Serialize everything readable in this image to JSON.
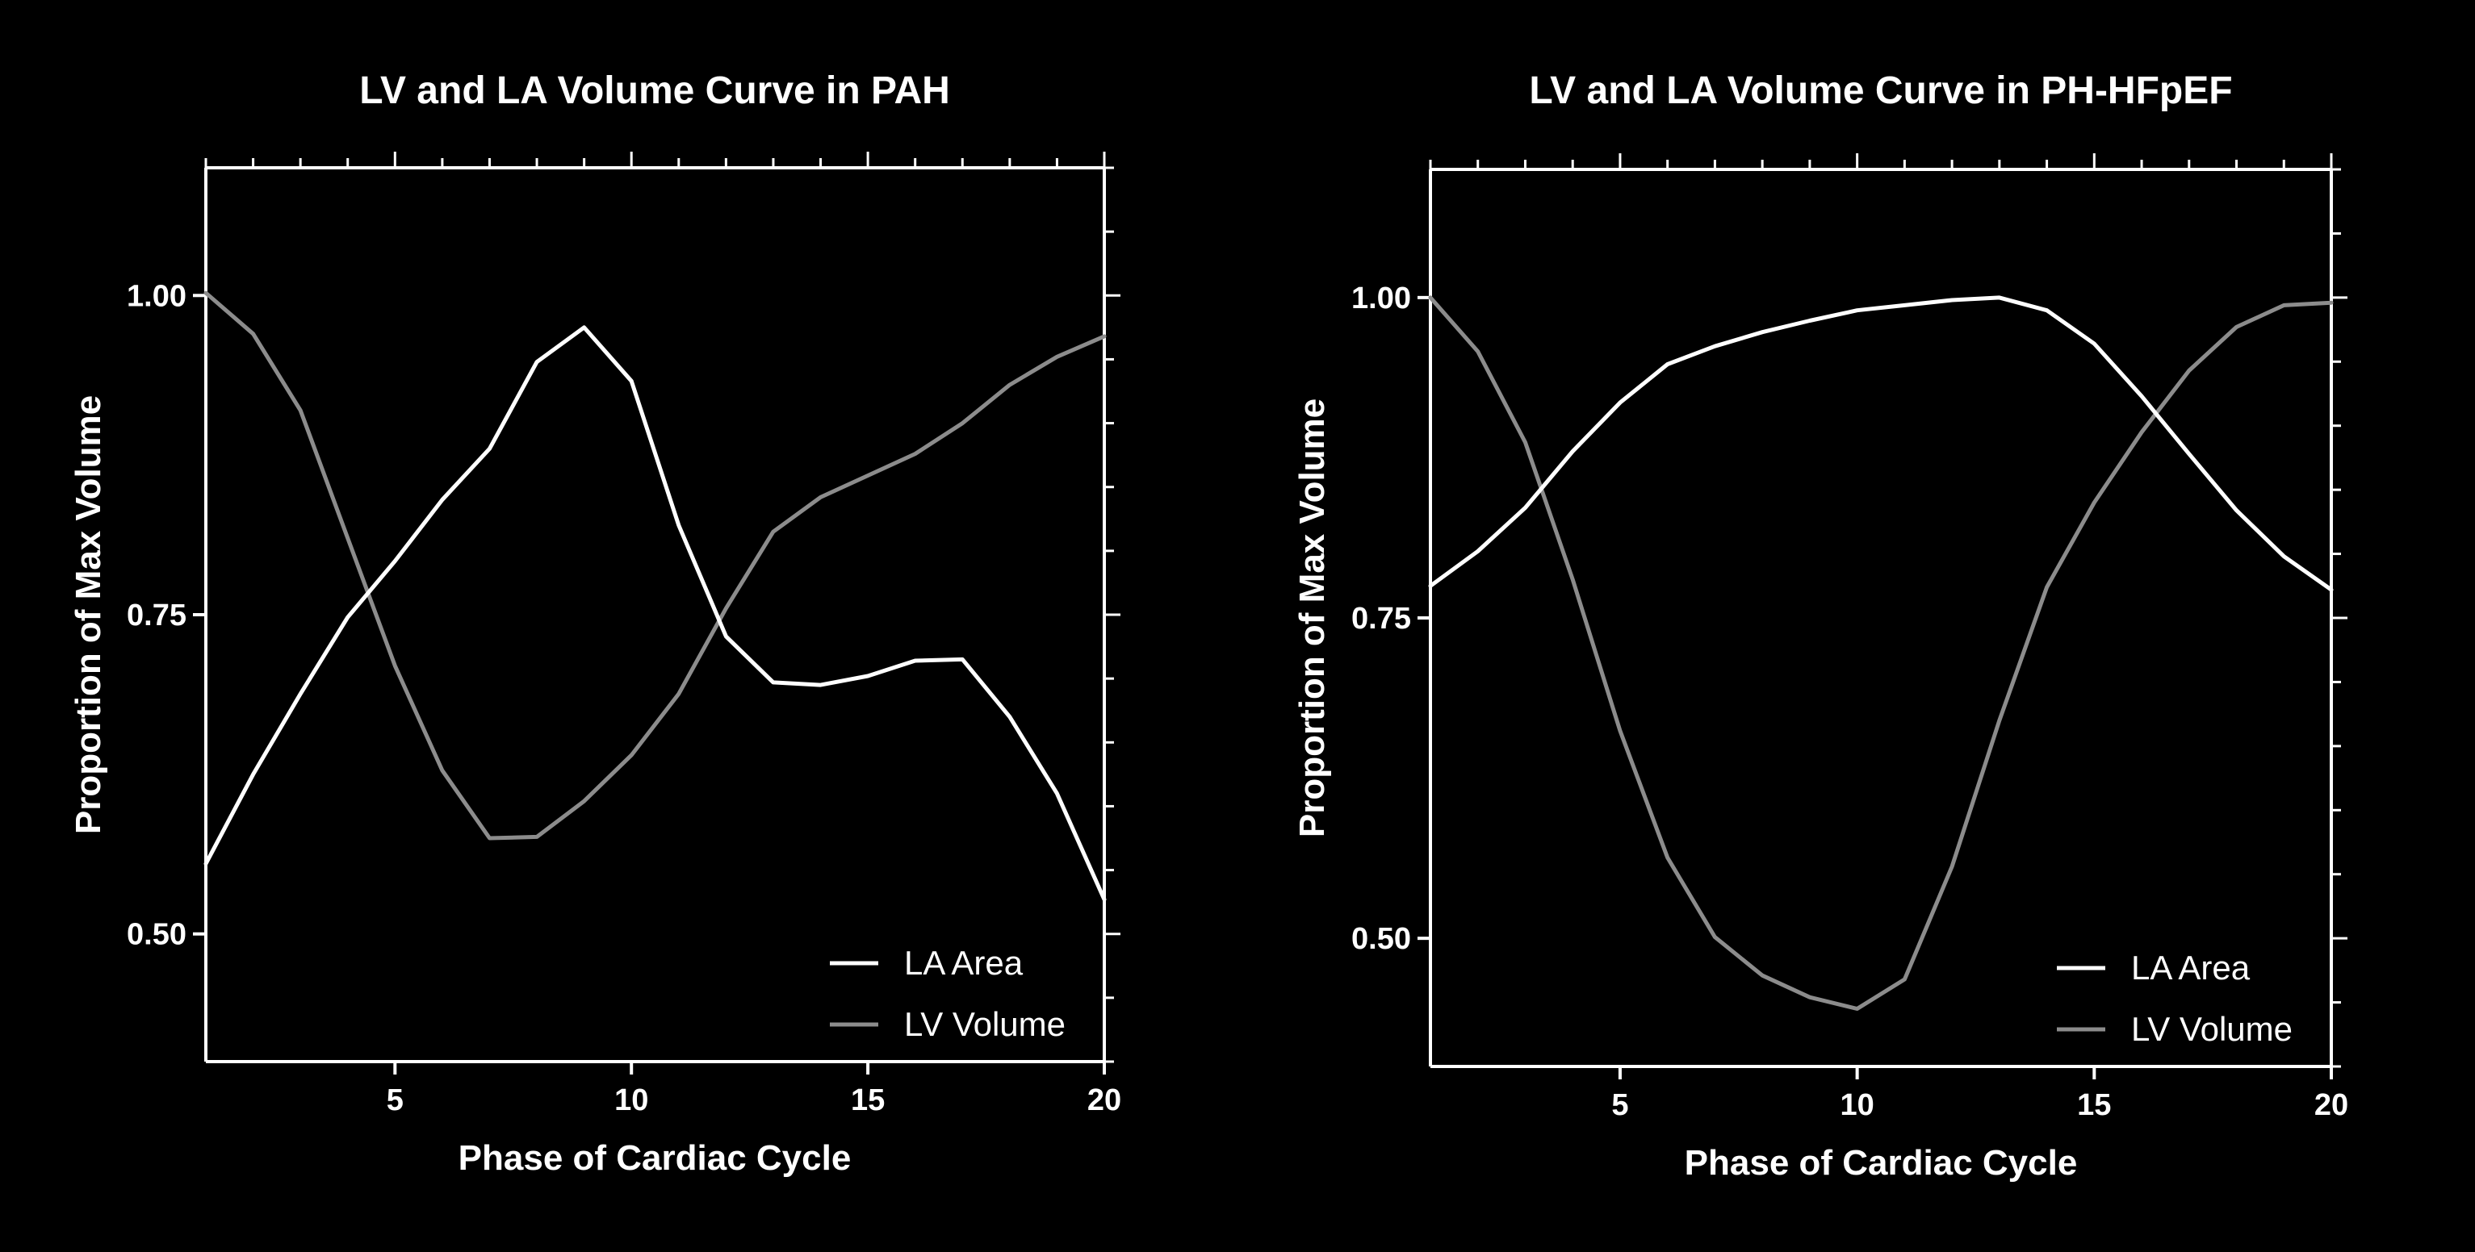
{
  "chart_data": [
    {
      "type": "line",
      "title": "LV and LA Volume Curve in PAH",
      "xlabel": "Phase of Cardiac Cycle",
      "ylabel": "Proportion of Max Volume",
      "xlim": [
        1,
        20
      ],
      "ylim": [
        0.4,
        1.1
      ],
      "xticks": [
        5,
        10,
        15,
        20
      ],
      "yticks": [
        0.5,
        0.75,
        1.0
      ],
      "ytick_labels": [
        "0.50",
        "0.75",
        "1.00"
      ],
      "grid": false,
      "legend_position": "bottom-right",
      "x": [
        1,
        2,
        3,
        4,
        5,
        6,
        7,
        8,
        9,
        10,
        11,
        12,
        13,
        14,
        15,
        16,
        17,
        18,
        19,
        20
      ],
      "series": [
        {
          "name": "LA Area",
          "color": "#ffffff",
          "values": [
            0.555,
            0.625,
            0.688,
            0.748,
            0.792,
            0.84,
            0.88,
            0.948,
            0.975,
            0.933,
            0.82,
            0.733,
            0.697,
            0.695,
            0.702,
            0.714,
            0.715,
            0.67,
            0.61,
            0.527
          ]
        },
        {
          "name": "LV Volume",
          "color": "#8c8c8c",
          "values": [
            1.002,
            0.97,
            0.91,
            0.81,
            0.71,
            0.628,
            0.575,
            0.576,
            0.604,
            0.64,
            0.688,
            0.755,
            0.815,
            0.842,
            0.859,
            0.876,
            0.9,
            0.93,
            0.952,
            0.968
          ]
        }
      ]
    },
    {
      "type": "line",
      "title": "LV and LA Volume Curve in PH-HFpEF",
      "xlabel": "Phase of Cardiac Cycle",
      "ylabel": "Proportion of Max Volume",
      "xlim": [
        1,
        20
      ],
      "ylim": [
        0.4,
        1.1
      ],
      "xticks": [
        5,
        10,
        15,
        20
      ],
      "yticks": [
        0.5,
        0.75,
        1.0
      ],
      "ytick_labels": [
        "0.50",
        "0.75",
        "1.00"
      ],
      "grid": false,
      "legend_position": "bottom-right",
      "x": [
        1,
        2,
        3,
        4,
        5,
        6,
        7,
        8,
        9,
        10,
        11,
        12,
        13,
        14,
        15,
        16,
        17,
        18,
        19,
        20
      ],
      "series": [
        {
          "name": "LA Area",
          "color": "#ffffff",
          "values": [
            0.775,
            0.802,
            0.836,
            0.88,
            0.918,
            0.948,
            0.962,
            0.973,
            0.982,
            0.99,
            0.994,
            0.998,
            1.0,
            0.99,
            0.964,
            0.923,
            0.878,
            0.834,
            0.798,
            0.772
          ]
        },
        {
          "name": "LV Volume",
          "color": "#8c8c8c",
          "values": [
            1.0,
            0.958,
            0.887,
            0.78,
            0.662,
            0.563,
            0.501,
            0.471,
            0.454,
            0.445,
            0.468,
            0.556,
            0.67,
            0.774,
            0.84,
            0.895,
            0.943,
            0.977,
            0.994,
            0.996
          ]
        }
      ]
    }
  ]
}
